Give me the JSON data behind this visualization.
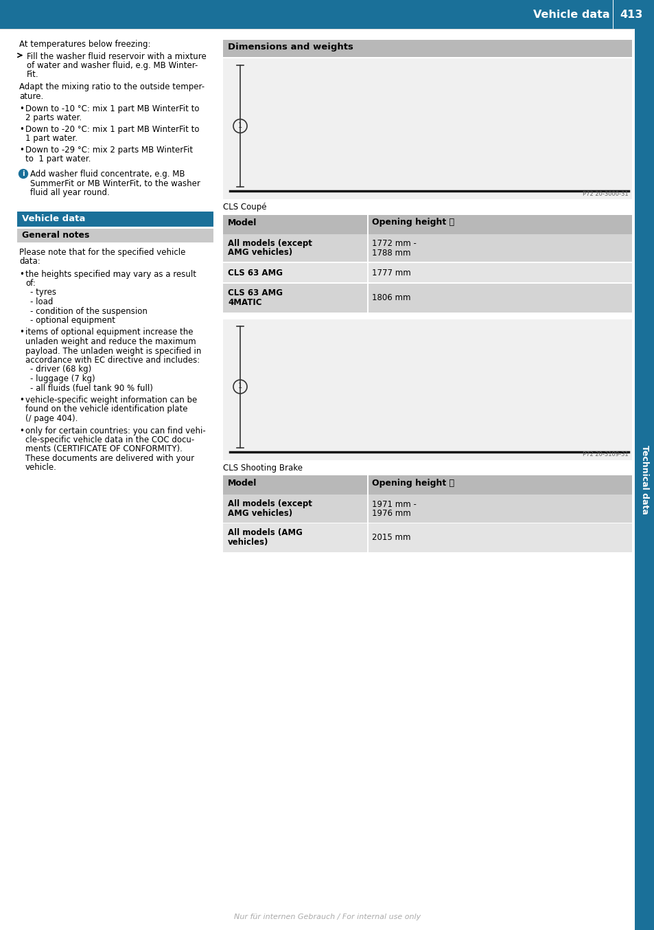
{
  "page_title": "Vehicle data",
  "page_number": "413",
  "header_bg": "#1a7099",
  "header_text_color": "#ffffff",
  "sidebar_text": "Technical data",
  "sidebar_bg": "#1a7099",
  "sidebar_text_color": "#ffffff",
  "background_color": "#ffffff",
  "vehicle_data_header": "Vehicle data",
  "vehicle_data_header_bg": "#1a7099",
  "vehicle_data_header_text_color": "#ffffff",
  "general_notes_header": "General notes",
  "general_notes_header_bg": "#c8c8c8",
  "general_notes_header_text_color": "#000000",
  "right_column": {
    "dim_weights_header": "Dimensions and weights",
    "dim_weights_header_bg": "#b8b8b8",
    "cls_coupe_label": "CLS Coupé",
    "table1_rows": [
      {
        "model": "All models (except\nAMG vehicles)",
        "height": "1772 mm -\n1788 mm"
      },
      {
        "model": "CLS 63 AMG",
        "height": "1777 mm"
      },
      {
        "model": "CLS 63 AMG\n4MATIC",
        "height": "1806 mm"
      }
    ],
    "cls_shooting_label": "CLS Shooting Brake",
    "table2_rows": [
      {
        "model": "All models (except\nAMG vehicles)",
        "height": "1971 mm -\n1976 mm"
      },
      {
        "model": "All models (AMG\nvehicles)",
        "height": "2015 mm"
      }
    ],
    "table_header_bg": "#b8b8b8",
    "table_row_bg_odd": "#d4d4d4",
    "table_row_bg_even": "#e4e4e4"
  },
  "footer_text": "Nur für internen Gebrauch / For internal use only",
  "footer_color": "#aaaaaa"
}
